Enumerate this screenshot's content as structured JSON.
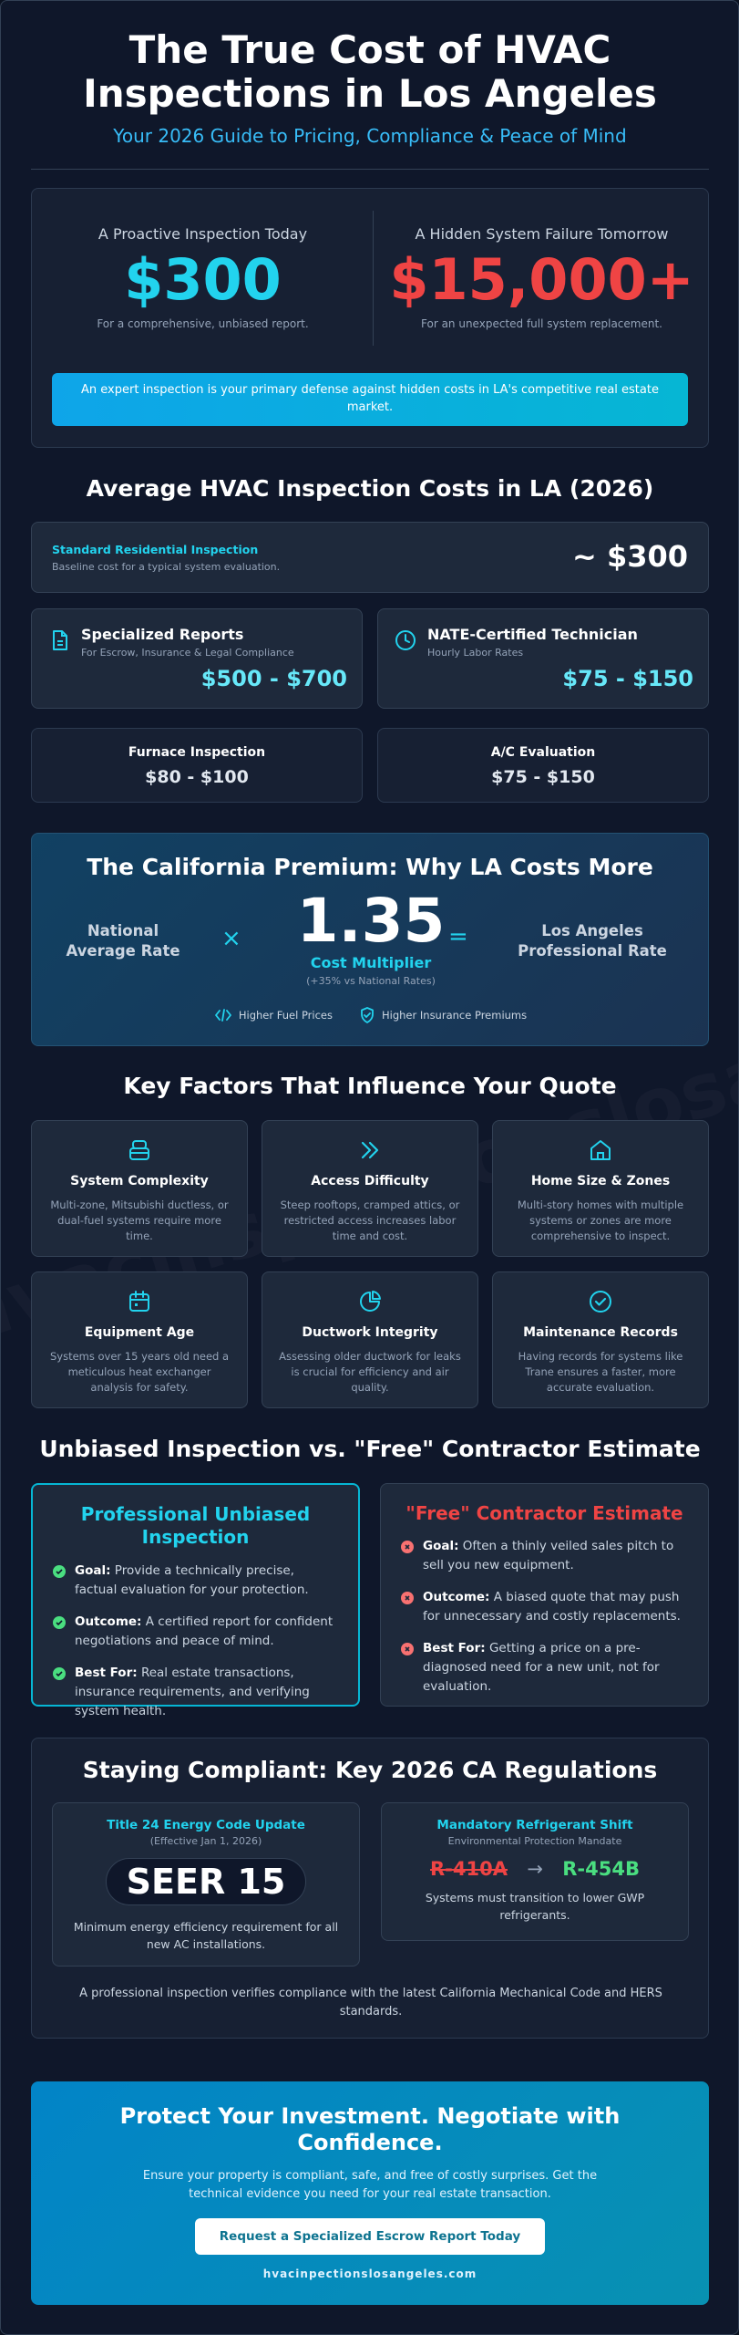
{
  "header": {
    "title_line1": "The True Cost of HVAC",
    "title_line2": "Inspections in Los Angeles",
    "subtitle": "Your 2026 Guide to Pricing, Compliance & Peace of Mind"
  },
  "compare": {
    "left_label": "A Proactive Inspection Today",
    "left_value": "$300",
    "left_desc": "For a comprehensive, unbiased report.",
    "right_label": "A Hidden System Failure Tomorrow",
    "right_value": "$15,000+",
    "right_desc": "For an unexpected full system replacement.",
    "banner": "An expert inspection is your primary defense against hidden costs in LA's competitive real estate market."
  },
  "costs": {
    "title": "Average HVAC Inspection Costs in LA (2026)",
    "standard_label": "Standard Residential Inspection",
    "standard_desc": "Baseline cost for a typical system evaluation.",
    "standard_value": "~ $300",
    "reports_title": "Specialized Reports",
    "reports_desc": "For Escrow, Insurance & Legal Compliance",
    "reports_value": "$500 - $700",
    "nate_title": "NATE-Certified Technician",
    "nate_desc": "Hourly Labor Rates",
    "nate_value": "$75 - $150",
    "furnace_title": "Furnace Inspection",
    "furnace_value": "$80 - $100",
    "ac_title": "A/C Evaluation",
    "ac_value": "$75 - $150"
  },
  "premium": {
    "title": "The California Premium: Why LA Costs More",
    "national_line1": "National",
    "national_line2": "Average Rate",
    "times": "×",
    "multiplier": "1.35",
    "multiplier_label": "Cost Multiplier",
    "multiplier_note": "(+35% vs National Rates)",
    "equals": "=",
    "la_line1": "Los Angeles",
    "la_line2": "Professional Rate",
    "factor1": "Higher Fuel Prices",
    "factor2": "Higher Insurance Premiums"
  },
  "factors": {
    "title": "Key Factors That Influence Your Quote",
    "watermark": "hvacinspectionslosangeles",
    "items": [
      {
        "title": "System Complexity",
        "desc": "Multi-zone, Mitsubishi ductless, or dual-fuel systems require more time.",
        "icon": "layers-icon"
      },
      {
        "title": "Access Difficulty",
        "desc": "Steep rooftops, cramped attics, or restricted access increases labor time and cost.",
        "icon": "chevrons-right-icon"
      },
      {
        "title": "Home Size & Zones",
        "desc": "Multi-story homes with multiple systems or zones are more comprehensive to inspect.",
        "icon": "home-icon"
      },
      {
        "title": "Equipment Age",
        "desc": "Systems over 15 years old need a meticulous heat exchanger analysis for safety.",
        "icon": "calendar-icon"
      },
      {
        "title": "Ductwork Integrity",
        "desc": "Assessing older ductwork for leaks is crucial for efficiency and air quality.",
        "icon": "pie-chart-icon"
      },
      {
        "title": "Maintenance Records",
        "desc": "Having records for systems like Trane ensures a faster, more accurate evaluation.",
        "icon": "check-circle-icon"
      }
    ]
  },
  "versus": {
    "title": "Unbiased Inspection vs. \"Free\" Contractor Estimate",
    "pro_title_line1": "Professional Unbiased",
    "pro_title_line2": "Inspection",
    "pro_items": [
      {
        "label": "Goal:",
        "text": "Provide a technically precise, factual evaluation for your protection."
      },
      {
        "label": "Outcome:",
        "text": "A certified report for confident negotiations and peace of mind."
      },
      {
        "label": "Best For:",
        "text": "Real estate transactions, insurance requirements, and verifying system health."
      }
    ],
    "free_title": "\"Free\" Contractor Estimate",
    "free_items": [
      {
        "label": "Goal:",
        "text": "Often a thinly veiled sales pitch to sell you new equipment."
      },
      {
        "label": "Outcome:",
        "text": "A biased quote that may push for unnecessary and costly replacements."
      },
      {
        "label": "Best For:",
        "text": "Getting a price on a pre-diagnosed need for a new unit, not for evaluation."
      }
    ]
  },
  "compliance": {
    "title": "Staying Compliant: Key 2026 CA Regulations",
    "t24_title": "Title 24 Energy Code Update",
    "t24_sub": "(Effective Jan 1, 2026)",
    "t24_badge": "SEER 15",
    "t24_desc": "Minimum energy efficiency requirement for all new AC installations.",
    "ref_title": "Mandatory Refrigerant Shift",
    "ref_sub": "Environmental Protection Mandate",
    "ref_old": "R-410A",
    "ref_arrow": "→",
    "ref_new": "R-454B",
    "ref_desc": "Systems must transition to lower GWP refrigerants.",
    "footer": "A professional inspection verifies compliance with the latest California Mechanical Code and HERS standards."
  },
  "cta": {
    "title_line1": "Protect Your Investment. Negotiate with",
    "title_line2": "Confidence.",
    "desc": "Ensure your property is compliant, safe, and free of costly surprises. Get the technical evidence you need for your real estate transaction.",
    "button": "Request a Specialized Escrow Report Today",
    "site": "hvacinpectionslosangeles.com"
  },
  "colors": {
    "background": "#0f172a",
    "card": "#1e293b",
    "accent_cyan": "#22d3ee",
    "accent_red": "#ef4444",
    "accent_green": "#4ade80"
  }
}
